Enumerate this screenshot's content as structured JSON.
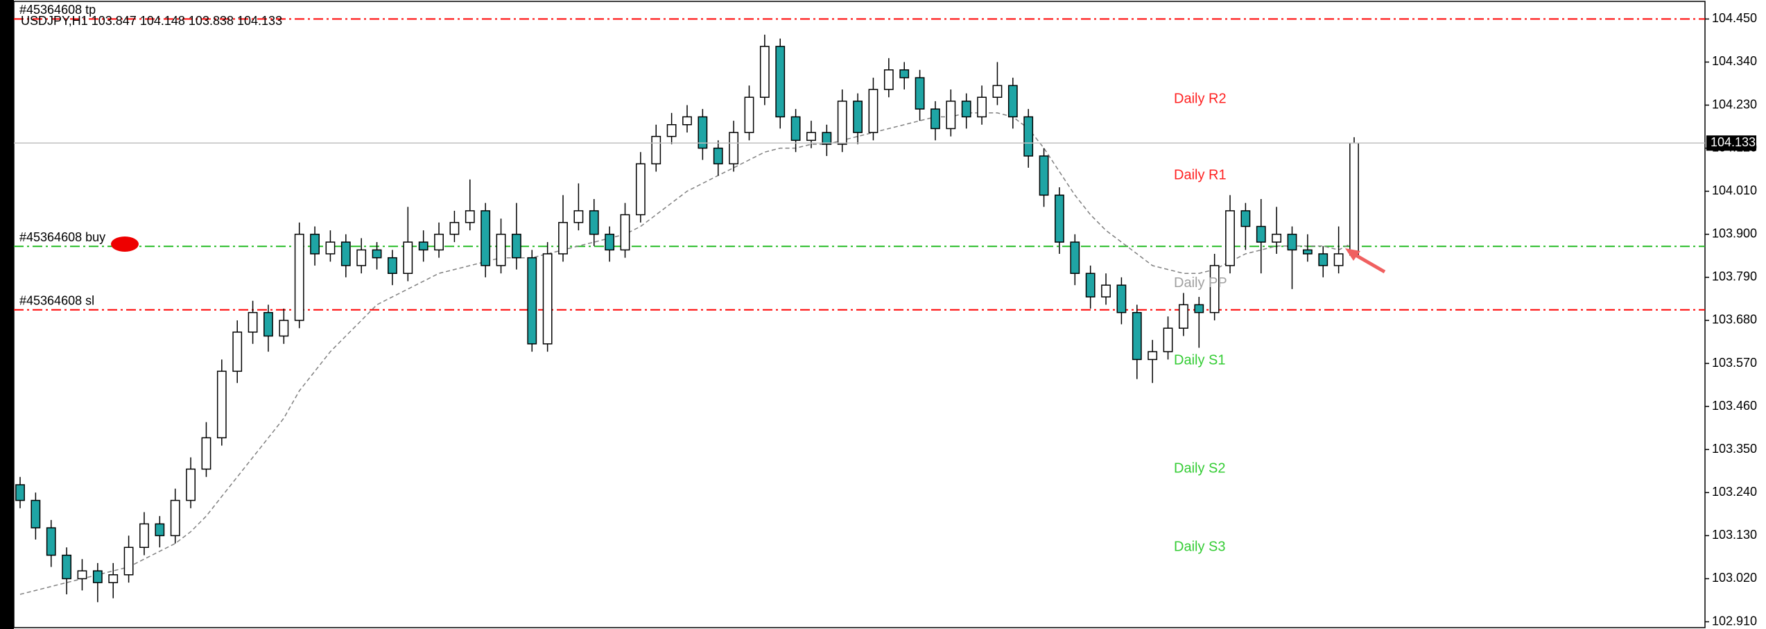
{
  "chart_data": {
    "type": "candlestick",
    "title": "USDJPY,H1",
    "ylim": [
      102.895,
      104.495
    ],
    "yticks": [
      {
        "value": 104.45,
        "label": "104.450"
      },
      {
        "value": 104.34,
        "label": "104.340"
      },
      {
        "value": 104.23,
        "label": "104.230"
      },
      {
        "value": 104.12,
        "label": "104.120"
      },
      {
        "value": 104.01,
        "label": "104.010"
      },
      {
        "value": 103.9,
        "label": "103.900"
      },
      {
        "value": 103.79,
        "label": "103.790"
      },
      {
        "value": 103.68,
        "label": "103.680"
      },
      {
        "value": 103.57,
        "label": "103.570"
      },
      {
        "value": 103.46,
        "label": "103.460"
      },
      {
        "value": 103.35,
        "label": "103.350"
      },
      {
        "value": 103.24,
        "label": "103.240"
      },
      {
        "value": 103.13,
        "label": "103.130"
      },
      {
        "value": 103.02,
        "label": "103.020"
      },
      {
        "value": 102.91,
        "label": "102.910"
      }
    ],
    "up_color": "#ffffff",
    "down_color": "#1fa5a5",
    "ohlc": [
      [
        103.26,
        103.28,
        103.2,
        103.22
      ],
      [
        103.22,
        103.24,
        103.12,
        103.15
      ],
      [
        103.15,
        103.17,
        103.05,
        103.08
      ],
      [
        103.08,
        103.1,
        102.98,
        103.02
      ],
      [
        103.02,
        103.07,
        102.99,
        103.04
      ],
      [
        103.04,
        103.06,
        102.96,
        103.01
      ],
      [
        103.01,
        103.06,
        102.97,
        103.03
      ],
      [
        103.03,
        103.13,
        103.01,
        103.1
      ],
      [
        103.1,
        103.19,
        103.08,
        103.16
      ],
      [
        103.16,
        103.18,
        103.1,
        103.13
      ],
      [
        103.13,
        103.25,
        103.11,
        103.22
      ],
      [
        103.22,
        103.33,
        103.2,
        103.3
      ],
      [
        103.3,
        103.42,
        103.28,
        103.38
      ],
      [
        103.38,
        103.58,
        103.36,
        103.55
      ],
      [
        103.55,
        103.68,
        103.52,
        103.65
      ],
      [
        103.65,
        103.73,
        103.62,
        103.7
      ],
      [
        103.7,
        103.72,
        103.6,
        103.64
      ],
      [
        103.64,
        103.71,
        103.62,
        103.68
      ],
      [
        103.68,
        103.93,
        103.66,
        103.9
      ],
      [
        103.9,
        103.92,
        103.82,
        103.85
      ],
      [
        103.85,
        103.91,
        103.83,
        103.88
      ],
      [
        103.88,
        103.9,
        103.79,
        103.82
      ],
      [
        103.82,
        103.89,
        103.8,
        103.86
      ],
      [
        103.86,
        103.88,
        103.81,
        103.84
      ],
      [
        103.84,
        103.86,
        103.77,
        103.8
      ],
      [
        103.8,
        103.97,
        103.78,
        103.88
      ],
      [
        103.88,
        103.91,
        103.83,
        103.86
      ],
      [
        103.86,
        103.93,
        103.84,
        103.9
      ],
      [
        103.9,
        103.96,
        103.88,
        103.93
      ],
      [
        103.93,
        104.04,
        103.91,
        103.96
      ],
      [
        103.96,
        103.98,
        103.79,
        103.82
      ],
      [
        103.82,
        103.94,
        103.8,
        103.9
      ],
      [
        103.9,
        103.98,
        103.81,
        103.84
      ],
      [
        103.84,
        103.86,
        103.6,
        103.62
      ],
      [
        103.62,
        103.88,
        103.6,
        103.85
      ],
      [
        103.85,
        104.0,
        103.83,
        103.93
      ],
      [
        103.93,
        104.03,
        103.91,
        103.96
      ],
      [
        103.96,
        103.99,
        103.87,
        103.9
      ],
      [
        103.9,
        103.92,
        103.83,
        103.86
      ],
      [
        103.86,
        103.98,
        103.84,
        103.95
      ],
      [
        103.95,
        104.11,
        103.93,
        104.08
      ],
      [
        104.08,
        104.18,
        104.06,
        104.15
      ],
      [
        104.15,
        104.21,
        104.13,
        104.18
      ],
      [
        104.18,
        104.23,
        104.16,
        104.2
      ],
      [
        104.2,
        104.22,
        104.09,
        104.12
      ],
      [
        104.12,
        104.14,
        104.05,
        104.08
      ],
      [
        104.08,
        104.19,
        104.06,
        104.16
      ],
      [
        104.16,
        104.28,
        104.14,
        104.25
      ],
      [
        104.25,
        104.41,
        104.23,
        104.38
      ],
      [
        104.38,
        104.4,
        104.17,
        104.2
      ],
      [
        104.2,
        104.22,
        104.11,
        104.14
      ],
      [
        104.14,
        104.19,
        104.12,
        104.16
      ],
      [
        104.16,
        104.18,
        104.1,
        104.13
      ],
      [
        104.13,
        104.27,
        104.11,
        104.24
      ],
      [
        104.24,
        104.26,
        104.13,
        104.16
      ],
      [
        104.16,
        104.3,
        104.14,
        104.27
      ],
      [
        104.27,
        104.35,
        104.25,
        104.32
      ],
      [
        104.32,
        104.34,
        104.27,
        104.3
      ],
      [
        104.3,
        104.32,
        104.19,
        104.22
      ],
      [
        104.22,
        104.24,
        104.14,
        104.17
      ],
      [
        104.17,
        104.27,
        104.15,
        104.24
      ],
      [
        104.24,
        104.26,
        104.17,
        104.2
      ],
      [
        104.2,
        104.28,
        104.18,
        104.25
      ],
      [
        104.25,
        104.34,
        104.23,
        104.28
      ],
      [
        104.28,
        104.3,
        104.17,
        104.2
      ],
      [
        104.2,
        104.22,
        104.07,
        104.1
      ],
      [
        104.1,
        104.12,
        103.97,
        104.0
      ],
      [
        104.0,
        104.02,
        103.85,
        103.88
      ],
      [
        103.88,
        103.9,
        103.77,
        103.8
      ],
      [
        103.8,
        103.82,
        103.71,
        103.74
      ],
      [
        103.74,
        103.8,
        103.72,
        103.77
      ],
      [
        103.77,
        103.79,
        103.67,
        103.7
      ],
      [
        103.7,
        103.72,
        103.53,
        103.58
      ],
      [
        103.58,
        103.63,
        103.52,
        103.6
      ],
      [
        103.6,
        103.69,
        103.58,
        103.66
      ],
      [
        103.66,
        103.75,
        103.64,
        103.72
      ],
      [
        103.72,
        103.74,
        103.61,
        103.7
      ],
      [
        103.7,
        103.85,
        103.68,
        103.82
      ],
      [
        103.82,
        104.0,
        103.8,
        103.96
      ],
      [
        103.96,
        103.98,
        103.86,
        103.92
      ],
      [
        103.92,
        103.99,
        103.8,
        103.88
      ],
      [
        103.88,
        103.97,
        103.85,
        103.9
      ],
      [
        103.9,
        103.92,
        103.76,
        103.86
      ],
      [
        103.86,
        103.9,
        103.83,
        103.85
      ],
      [
        103.85,
        103.87,
        103.79,
        103.82
      ],
      [
        103.82,
        103.92,
        103.8,
        103.85
      ],
      [
        103.847,
        104.148,
        103.838,
        104.133
      ]
    ],
    "moving_average": {
      "color": "#808080",
      "values": [
        102.98,
        102.99,
        103.0,
        103.01,
        103.02,
        103.03,
        103.04,
        103.05,
        103.07,
        103.09,
        103.11,
        103.14,
        103.18,
        103.23,
        103.28,
        103.33,
        103.38,
        103.43,
        103.5,
        103.55,
        103.6,
        103.64,
        103.68,
        103.72,
        103.74,
        103.76,
        103.78,
        103.8,
        103.81,
        103.82,
        103.83,
        103.84,
        103.84,
        103.84,
        103.85,
        103.86,
        103.87,
        103.88,
        103.89,
        103.9,
        103.92,
        103.95,
        103.98,
        104.01,
        104.03,
        104.05,
        104.07,
        104.09,
        104.11,
        104.12,
        104.12,
        104.13,
        104.13,
        104.14,
        104.15,
        104.16,
        104.17,
        104.18,
        104.19,
        104.2,
        104.2,
        104.21,
        104.21,
        104.21,
        104.2,
        104.17,
        104.12,
        104.06,
        104.0,
        103.95,
        103.91,
        103.88,
        103.85,
        103.82,
        103.81,
        103.8,
        103.8,
        103.81,
        103.83,
        103.85,
        103.86,
        103.87,
        103.87,
        103.87,
        103.87,
        103.86,
        103.88
      ]
    },
    "levels": [
      {
        "label": "#45364608 tp",
        "value": 104.45,
        "color": "#ff0000"
      },
      {
        "label": "#45364608 buy",
        "value": 103.869,
        "color": "#22bb22"
      },
      {
        "label": "#45364608 sl",
        "value": 103.707,
        "color": "#ff0000"
      }
    ],
    "pivots": [
      {
        "label": "Daily R2",
        "value": 104.245,
        "color": "#ff2020"
      },
      {
        "label": "Daily R1",
        "value": 104.05,
        "color": "#ff2020"
      },
      {
        "label": "Daily PP",
        "value": 103.774,
        "color": "#a0a0a0"
      },
      {
        "label": "Daily S1",
        "value": 103.577,
        "color": "#33cc33"
      },
      {
        "label": "Daily S2",
        "value": 103.3,
        "color": "#33cc33"
      },
      {
        "label": "Daily S3",
        "value": 103.1,
        "color": "#33cc33"
      }
    ]
  }
}
